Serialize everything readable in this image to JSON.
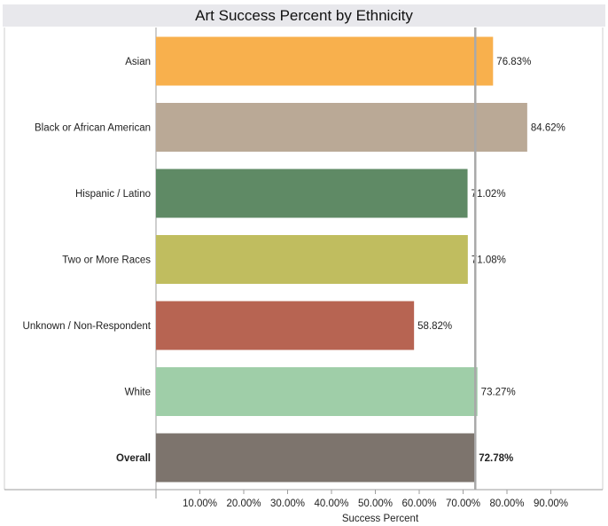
{
  "chart_data": {
    "type": "bar",
    "orientation": "horizontal",
    "title": "Art Success Percent by Ethnicity",
    "xlabel": "Success Percent",
    "ylabel": "",
    "xlim": [
      0,
      100
    ],
    "x_ticks": [
      "10.00%",
      "20.00%",
      "30.00%",
      "40.00%",
      "50.00%",
      "60.00%",
      "70.00%",
      "80.00%",
      "90.00%"
    ],
    "categories": [
      "Asian",
      "Black or African American",
      "Hispanic / Latino",
      "Two or More Races",
      "Unknown / Non-Respondent",
      "White",
      "Overall"
    ],
    "values": [
      76.83,
      84.62,
      71.02,
      71.08,
      58.82,
      73.27,
      72.78
    ],
    "value_labels": [
      "76.83%",
      "84.62%",
      "71.02%",
      "71.08%",
      "58.82%",
      "73.27%",
      "72.78%"
    ],
    "colors": [
      "#f8b04d",
      "#baa996",
      "#5f8a65",
      "#c0bd5f",
      "#b76452",
      "#9fcea8",
      "#7d746d"
    ],
    "bold_categories": [
      "Overall"
    ],
    "reference_line": 72.78,
    "reference_line_color": "#a9a9a9",
    "grid": false
  }
}
